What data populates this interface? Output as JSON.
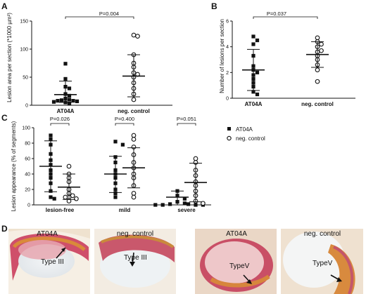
{
  "panels": {
    "A": "A",
    "B": "B",
    "C": "C",
    "D": "D"
  },
  "chart_data": [
    {
      "id": "A",
      "type": "scatter",
      "ylabel": "Lesion area per section (*1000 µm²)",
      "categories": [
        "AT04A",
        "neg. control"
      ],
      "ylim": [
        0,
        150
      ],
      "yticks": [
        0,
        50,
        100,
        150
      ],
      "pvalue": "P=0.004",
      "series": [
        {
          "category": "AT04A",
          "marker": "square",
          "values": [
            74,
            47,
            33,
            30,
            20,
            17,
            12,
            10,
            9,
            8,
            8,
            7,
            6,
            5,
            3
          ],
          "mean": 19,
          "sd": [
            5,
            43
          ]
        },
        {
          "category": "neg. control",
          "marker": "circle",
          "values": [
            125,
            123,
            90,
            75,
            68,
            58,
            55,
            50,
            40,
            30,
            20,
            10
          ],
          "mean": 52,
          "sd": [
            15,
            90
          ]
        }
      ]
    },
    {
      "id": "B",
      "type": "scatter",
      "ylabel": "Number of lesions per section",
      "categories": [
        "AT04A",
        "neg. control"
      ],
      "ylim": [
        0,
        6
      ],
      "yticks": [
        0,
        2,
        4,
        6
      ],
      "pvalue": "P=0.037",
      "series": [
        {
          "category": "AT04A",
          "marker": "square",
          "values": [
            4.8,
            4.5,
            4.2,
            3.3,
            2.5,
            2.2,
            2.0,
            1.8,
            1.5,
            1.2,
            0.9,
            0.5,
            0.3
          ],
          "mean": 2.2,
          "sd": [
            0.6,
            3.8
          ]
        },
        {
          "category": "neg. control",
          "marker": "circle",
          "values": [
            4.7,
            4.4,
            4.2,
            4.0,
            3.7,
            3.6,
            3.3,
            3.0,
            2.6,
            2.2,
            1.3
          ],
          "mean": 3.4,
          "sd": [
            2.4,
            4.4
          ]
        }
      ]
    },
    {
      "id": "C",
      "type": "scatter",
      "ylabel": "Lesion appearance (% of segments)",
      "categories": [
        "lesion-free",
        "mild",
        "severe"
      ],
      "ylim": [
        0,
        100
      ],
      "yticks": [
        0,
        20,
        40,
        60,
        80,
        100
      ],
      "pvalues": [
        "P=0.026",
        "P=0.400",
        "P=0.051"
      ],
      "legend": [
        {
          "marker": "square",
          "label": "AT04A"
        },
        {
          "marker": "circle",
          "label": "neg. control"
        }
      ],
      "series": [
        {
          "name": "AT04A",
          "marker": "square",
          "groups": [
            {
              "category": "lesion-free",
              "values": [
                90,
                85,
                78,
                66,
                58,
                52,
                45,
                40,
                35,
                28,
                18,
                10,
                8
              ],
              "mean": 50,
              "sd": [
                17,
                83
              ]
            },
            {
              "category": "mild",
              "values": [
                82,
                78,
                62,
                55,
                45,
                40,
                35,
                28,
                20,
                15,
                10
              ],
              "mean": 40,
              "sd": [
                16,
                63
              ]
            },
            {
              "category": "severe",
              "values": [
                18,
                12,
                8,
                4,
                2,
                1,
                1,
                0,
                0,
                0,
                0
              ],
              "mean": 10,
              "sd": [
                0,
                18
              ]
            }
          ]
        },
        {
          "name": "neg. control",
          "marker": "circle",
          "groups": [
            {
              "category": "lesion-free",
              "values": [
                50,
                40,
                35,
                30,
                20,
                15,
                12,
                10,
                10,
                8,
                5
              ],
              "mean": 23,
              "sd": [
                7,
                40
              ]
            },
            {
              "category": "mild",
              "values": [
                90,
                85,
                75,
                65,
                55,
                48,
                40,
                35,
                25,
                15,
                10
              ],
              "mean": 48,
              "sd": [
                22,
                74
              ]
            },
            {
              "category": "severe",
              "values": [
                60,
                55,
                45,
                38,
                30,
                25,
                18,
                12,
                5,
                2
              ],
              "mean": 29,
              "sd": [
                4,
                54
              ]
            }
          ]
        }
      ]
    }
  ],
  "photos": [
    {
      "label": "AT04A",
      "type": "Type III"
    },
    {
      "label": "neg. control",
      "type": "Type III"
    },
    {
      "label": "AT04A",
      "type": "TypeV"
    },
    {
      "label": "neg. control",
      "type": "TypeV"
    }
  ]
}
